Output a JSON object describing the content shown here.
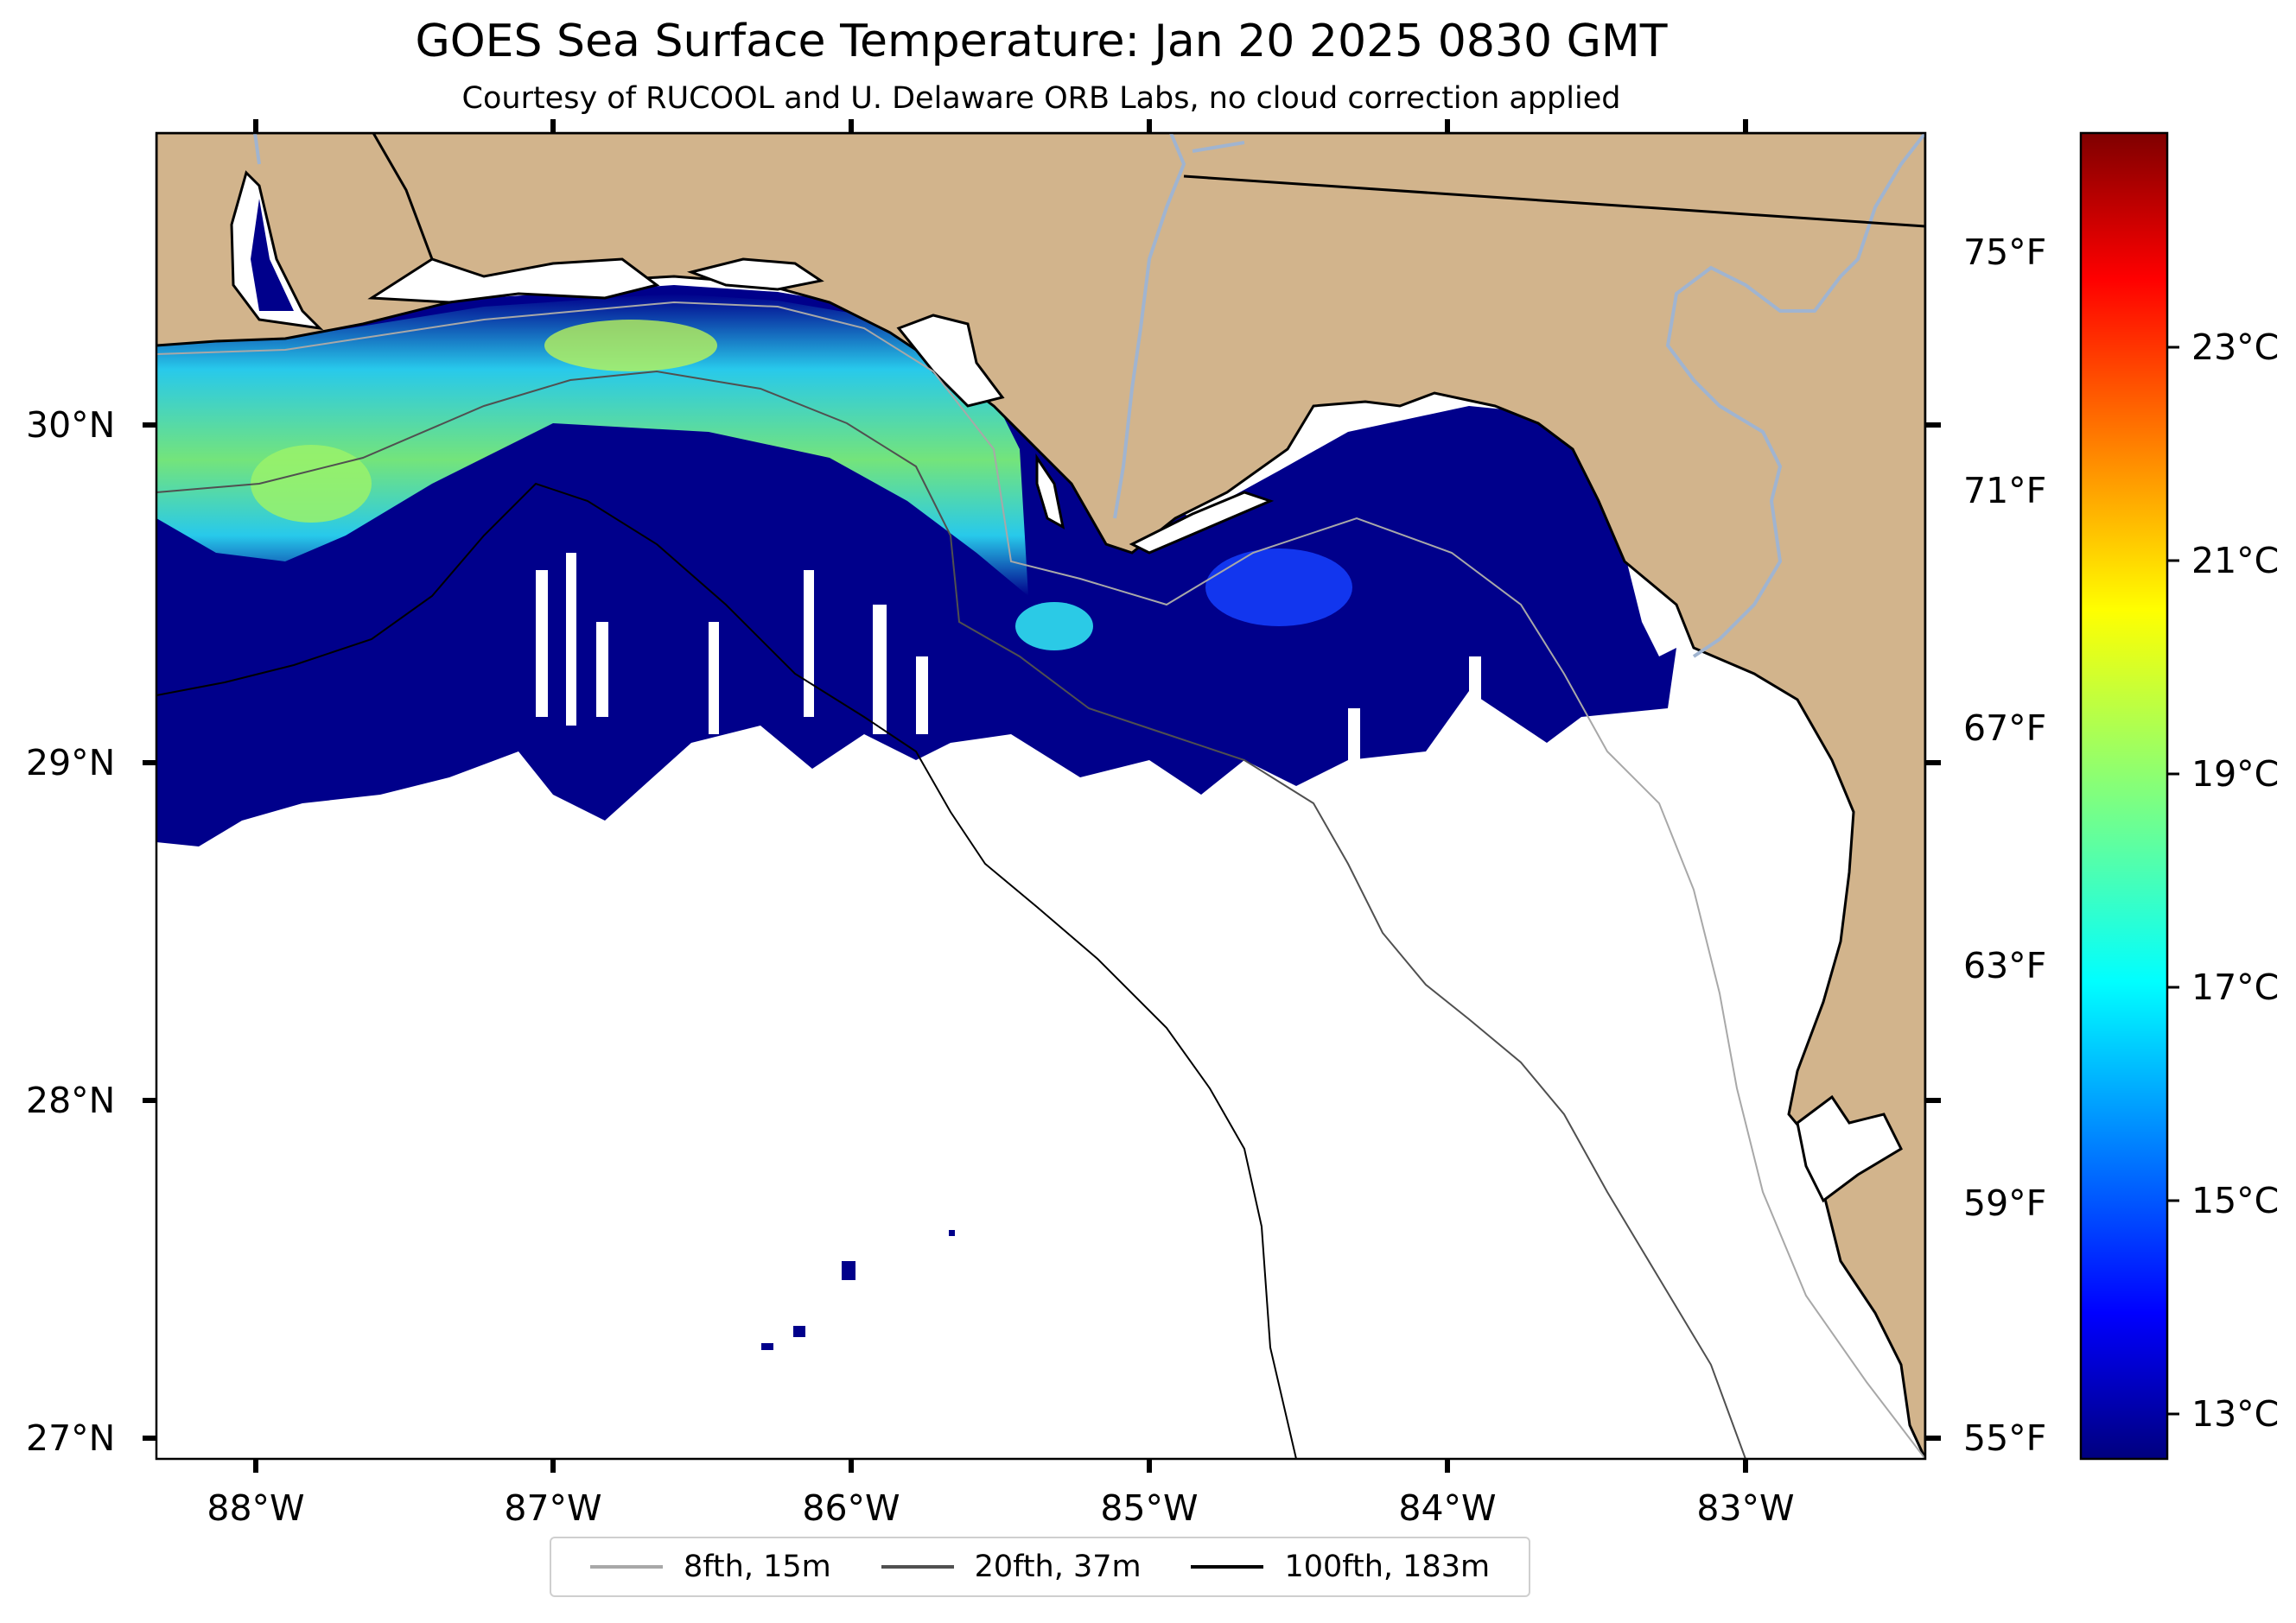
{
  "title": "GOES Sea Surface Temperature: Jan 20 2025 0830 GMT",
  "subtitle": "Courtesy of RUCOOL and U. Delaware ORB Labs, no cloud correction applied",
  "map": {
    "lat_labels": [
      "30°N",
      "29°N",
      "28°N",
      "27°N"
    ],
    "lon_labels": [
      "88°W",
      "87°W",
      "86°W",
      "85°W",
      "84°W",
      "83°W"
    ],
    "fahrenheit_labels": [
      "75°F",
      "71°F",
      "67°F",
      "63°F",
      "59°F",
      "55°F"
    ],
    "colors": {
      "land": "#d2b48c",
      "cold_water": "#00008b",
      "rivers": "#a0b4d0",
      "border": "#000000"
    }
  },
  "colorbar": {
    "labels": [
      "23°C",
      "21°C",
      "19°C",
      "17°C",
      "15°C",
      "13°C"
    ],
    "colormap": "jet"
  },
  "legend": {
    "items": [
      {
        "label": "8fth, 15m",
        "color": "#a8a8a8"
      },
      {
        "label": "20fth, 37m",
        "color": "#505050"
      },
      {
        "label": "100fth, 183m",
        "color": "#000000"
      }
    ]
  }
}
